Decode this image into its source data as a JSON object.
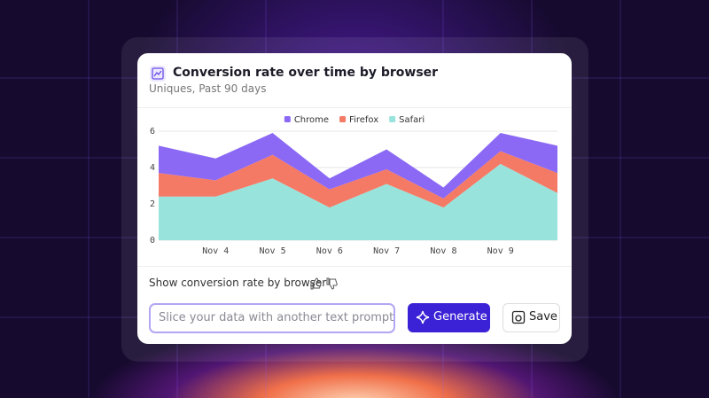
{
  "card": {
    "title": "Conversion rate over time by browser",
    "subtitle": "Uniques, Past 90 days",
    "hint": "Show conversion rate by browser",
    "input_placeholder": "Slice your data with another text prompt",
    "generate": "Generate",
    "save": "Save"
  },
  "chart_data": {
    "type": "stacked_area",
    "categories": [
      null,
      "Nov 4",
      "Nov 5",
      "Nov 6",
      "Nov 7",
      "Nov 8",
      "Nov 9",
      null
    ],
    "series": [
      {
        "name": "Chrome",
        "color": "#8b69f5",
        "values": [
          1.5,
          1.2,
          1.2,
          0.6,
          1.1,
          0.6,
          1.0,
          1.5
        ]
      },
      {
        "name": "Firefox",
        "color": "#f47a66",
        "values": [
          1.3,
          0.9,
          1.3,
          1.0,
          0.8,
          0.5,
          0.7,
          1.1
        ]
      },
      {
        "name": "Safari",
        "color": "#98e4dc",
        "values": [
          2.4,
          2.4,
          3.4,
          1.8,
          3.1,
          1.8,
          4.2,
          2.6
        ]
      }
    ],
    "ylim": [
      0,
      6
    ],
    "yticks": [
      0,
      2,
      4,
      6
    ],
    "grid": true,
    "legend": "top"
  }
}
